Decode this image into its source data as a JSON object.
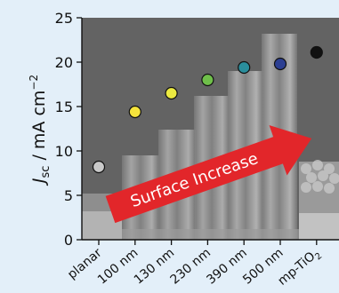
{
  "colors": {
    "background": "#e3eff9",
    "arrow": "#e2262a",
    "arrow_text": "#ffffff",
    "plot_gray": "#5f5f5f",
    "point_outline": "#111111"
  },
  "chart_data": {
    "type": "scatter",
    "ylabel": {
      "main": "J",
      "sub": "sc",
      "unit": " / mA cm",
      "sup": "−2"
    },
    "xlabel": "",
    "ylim": [
      0,
      25
    ],
    "y_ticks": [
      "0",
      "5",
      "10",
      "15",
      "20",
      "25"
    ],
    "categories": [
      "planar",
      "100 nm",
      "130 nm",
      "230 nm",
      "390 nm",
      "500 nm",
      "mp-TiO2"
    ],
    "category_labels": [
      {
        "text": "planar",
        "sub": ""
      },
      {
        "text": "100 nm",
        "sub": ""
      },
      {
        "text": "130 nm",
        "sub": ""
      },
      {
        "text": "230 nm",
        "sub": ""
      },
      {
        "text": "390 nm",
        "sub": ""
      },
      {
        "text": "500 nm",
        "sub": ""
      },
      {
        "text": "mp-TiO",
        "sub": "2"
      }
    ],
    "values": [
      8.2,
      14.4,
      16.5,
      18.0,
      19.4,
      19.8,
      21.1
    ],
    "point_colors": [
      "#c9c9c9",
      "#f6e43c",
      "#ecea41",
      "#6fbf4a",
      "#2a8e9c",
      "#2c3f92",
      "#111111"
    ],
    "annotation": "Surface Increase",
    "grid": false,
    "legend": "none"
  }
}
